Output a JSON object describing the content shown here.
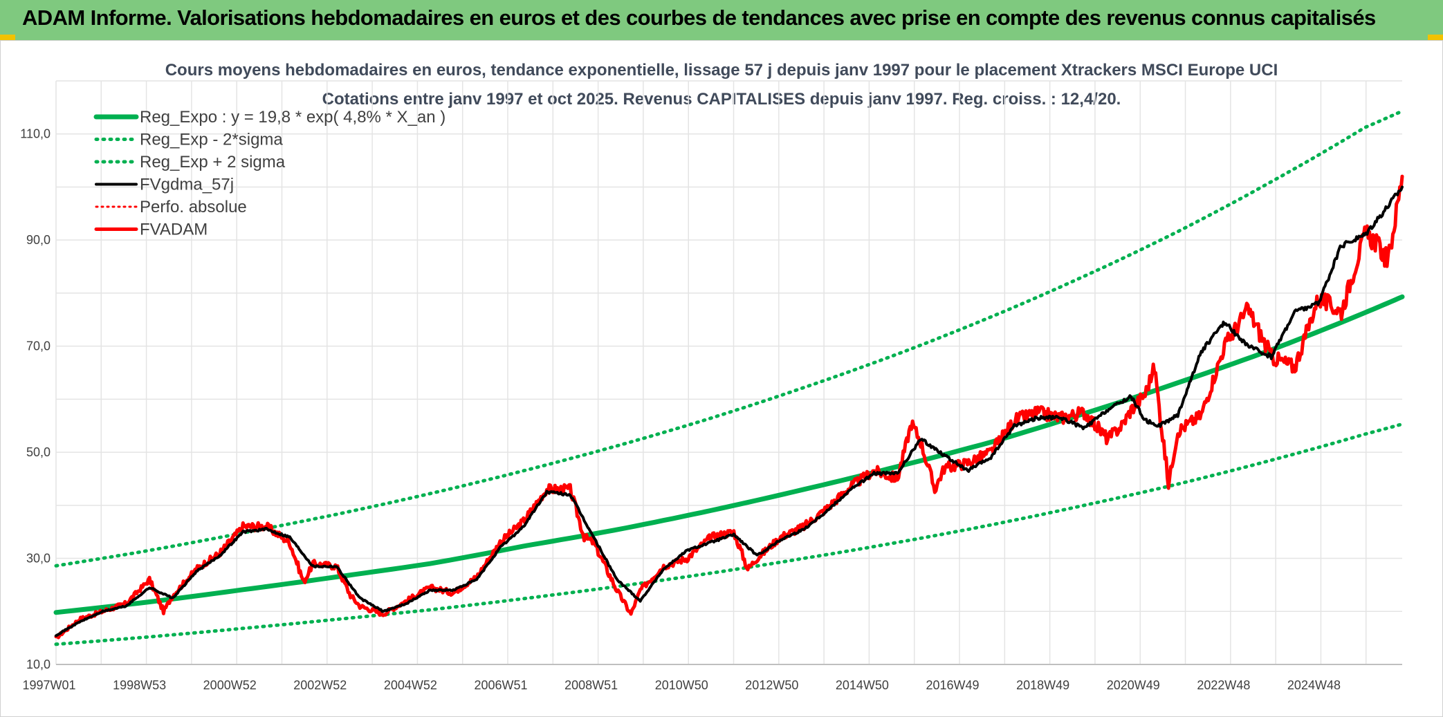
{
  "banner": {
    "title": "ADAM Informe. Valorisations hebdomadaires en euros et des courbes de tendances avec prise en compte des revenus connus capitalisés",
    "background": "#7fc97f"
  },
  "chart_data": {
    "type": "line",
    "title_line1": "Cours moyens hebdomadaires en euros, tendance exponentielle, lissage 57 j depuis janv 1997 pour le placement Xtrackers MSCI Europe UCI",
    "title_line2": "Cotations entre janv 1997 et oct 2025. Revenus CAPITALISES depuis janv 1997. Reg. croiss. : 12,4/20.",
    "xlabel": "",
    "ylabel": "",
    "xlim": [
      0,
      28.8
    ],
    "ylim": [
      10,
      120
    ],
    "yticks": [
      10,
      30,
      50,
      70,
      90,
      110
    ],
    "ytick_labels": [
      "10,0",
      "30,0",
      "50,0",
      "70,0",
      "90,0",
      "110,0"
    ],
    "xtick_labels": [
      "1997W01",
      "1998W53",
      "2000W52",
      "2002W52",
      "2004W52",
      "2006W51",
      "2008W51",
      "2010W50",
      "2012W50",
      "2014W50",
      "2016W49",
      "2018W49",
      "2020W49",
      "2022W48",
      "2024W48"
    ],
    "grid": true,
    "legend_position": "top-left",
    "colors": {
      "green": "#00b050",
      "black": "#000000",
      "red": "#ff0000"
    },
    "series": [
      {
        "name": "Reg_Expo : y = 19,8 * exp( 4,8% *  X_an )",
        "style": "solid-green",
        "x": [
          0,
          2,
          4,
          6,
          8,
          10,
          12,
          14,
          16,
          18,
          20,
          22,
          24,
          26,
          28,
          28.8
        ],
        "values": [
          19.8,
          21.8,
          24.1,
          26.5,
          29.0,
          32.3,
          35.4,
          39.0,
          43.0,
          47.3,
          51.9,
          57.3,
          63.1,
          69.3,
          76.3,
          79.3
        ]
      },
      {
        "name": "Reg_Exp - 2*sigma",
        "style": "dotted-green",
        "x": [
          0,
          2,
          4,
          6,
          8,
          10,
          12,
          14,
          16,
          18,
          20,
          22,
          24,
          26,
          28,
          28.8
        ],
        "values": [
          13.8,
          15.2,
          16.8,
          18.5,
          20.3,
          22.4,
          24.7,
          27.2,
          30.0,
          33.0,
          36.3,
          40.0,
          44.0,
          48.5,
          53.4,
          55.3
        ]
      },
      {
        "name": "Reg_Exp + 2 sigma",
        "style": "dotted-green",
        "x": [
          0,
          2,
          4,
          6,
          8,
          10,
          12,
          14,
          16,
          18,
          20,
          22,
          24,
          26,
          28,
          28.8
        ],
        "values": [
          28.6,
          31.5,
          34.8,
          38.3,
          42.2,
          46.5,
          51.2,
          56.4,
          62.2,
          68.5,
          75.5,
          83.2,
          91.6,
          101.0,
          111.2,
          114.3
        ]
      },
      {
        "name": "FVgdma_57j",
        "style": "solid-black",
        "x": [
          0,
          0.5,
          1.0,
          1.5,
          2.0,
          2.5,
          3.0,
          3.5,
          4.0,
          4.5,
          5.0,
          5.5,
          6.0,
          6.5,
          7.0,
          7.5,
          8.0,
          8.5,
          9.0,
          9.5,
          10.0,
          10.5,
          11.0,
          11.5,
          12.0,
          12.5,
          13.0,
          13.5,
          14.0,
          14.5,
          15.0,
          15.5,
          16.0,
          16.5,
          17.0,
          17.5,
          18.0,
          18.5,
          19.0,
          19.5,
          20.0,
          20.5,
          21.0,
          21.5,
          22.0,
          22.5,
          23.0,
          23.3,
          23.6,
          24.0,
          24.5,
          25.0,
          25.5,
          26.0,
          26.5,
          27.0,
          27.5,
          28.0,
          28.5,
          28.8
        ],
        "values": [
          15.5,
          18.0,
          20.0,
          21.0,
          24.5,
          22.5,
          27.5,
          30.5,
          35.0,
          35.5,
          34.0,
          28.5,
          28.5,
          22.5,
          20.0,
          21.5,
          24.0,
          24.0,
          26.0,
          32.0,
          36.0,
          42.5,
          42.0,
          34.0,
          26.0,
          22.0,
          28.0,
          31.5,
          33.0,
          34.5,
          30.5,
          33.5,
          35.5,
          39.0,
          43.0,
          46.0,
          46.0,
          52.5,
          49.5,
          46.5,
          49.0,
          55.0,
          56.5,
          56.5,
          54.5,
          58.0,
          60.5,
          56.0,
          55.0,
          57.0,
          69.0,
          74.5,
          70.0,
          68.0,
          76.5,
          78.0,
          89.0,
          91.0,
          96.5,
          100.0
        ]
      },
      {
        "name": "Perfo. absolue",
        "style": "dotted-red",
        "x": [],
        "values": []
      },
      {
        "name": "FVADAM",
        "style": "solid-red",
        "x": [
          0,
          0.5,
          1.0,
          1.5,
          2.0,
          2.3,
          2.5,
          3.0,
          3.5,
          4.0,
          4.5,
          5.0,
          5.3,
          5.5,
          6.0,
          6.3,
          6.5,
          7.0,
          7.5,
          8.0,
          8.5,
          9.0,
          9.5,
          10.0,
          10.5,
          11.0,
          11.3,
          11.5,
          12.0,
          12.3,
          12.5,
          13.0,
          13.5,
          14.0,
          14.5,
          14.8,
          15.0,
          15.5,
          16.0,
          16.5,
          17.0,
          17.5,
          18.0,
          18.3,
          18.5,
          18.8,
          19.0,
          19.5,
          20.0,
          20.5,
          21.0,
          21.5,
          22.0,
          22.5,
          22.8,
          23.0,
          23.3,
          23.5,
          23.8,
          24.0,
          24.5,
          25.0,
          25.5,
          26.0,
          26.5,
          27.0,
          27.5,
          28.0,
          28.2,
          28.5,
          28.8
        ],
        "values": [
          15.0,
          18.5,
          20.0,
          21.5,
          26.0,
          20.0,
          23.0,
          28.0,
          31.0,
          36.0,
          36.0,
          33.0,
          25.5,
          29.0,
          28.5,
          23.0,
          21.0,
          19.5,
          22.0,
          24.5,
          23.5,
          26.5,
          33.0,
          37.0,
          43.0,
          43.0,
          34.0,
          33.0,
          24.0,
          19.5,
          24.0,
          28.5,
          30.0,
          34.0,
          35.0,
          28.0,
          30.0,
          34.0,
          36.0,
          39.5,
          43.5,
          46.5,
          45.0,
          55.5,
          52.0,
          43.0,
          47.0,
          48.0,
          50.0,
          56.0,
          57.5,
          56.5,
          57.5,
          52.5,
          55.0,
          58.0,
          61.0,
          66.0,
          44.0,
          54.0,
          57.0,
          70.0,
          77.0,
          68.0,
          66.0,
          79.0,
          76.5,
          91.0,
          90.0,
          86.0,
          102.0
        ]
      }
    ]
  }
}
